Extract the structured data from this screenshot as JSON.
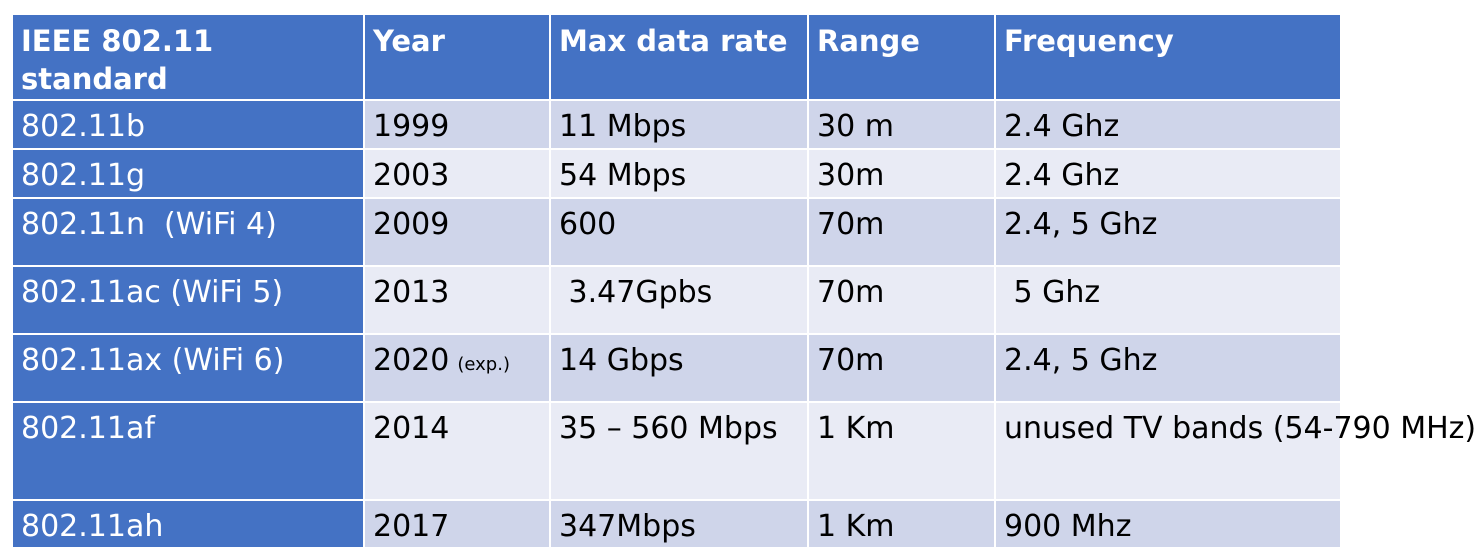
{
  "table": {
    "headers": {
      "standard": "IEEE 802.11 standard",
      "year": "Year",
      "rate": "Max data rate",
      "range": "Range",
      "frequency": "Frequency"
    },
    "rows": [
      {
        "standard": "802.11b",
        "year": "1999",
        "year_note": "",
        "rate": "11 Mbps",
        "range": "30 m",
        "frequency": "2.4 Ghz"
      },
      {
        "standard": "802.11g",
        "year": "2003",
        "year_note": "",
        "rate": "54 Mbps",
        "range": "30m",
        "frequency": "2.4 Ghz"
      },
      {
        "standard": "802.11n  (WiFi 4)",
        "year": "2009",
        "year_note": "",
        "rate": "600",
        "range": "70m",
        "frequency": "2.4, 5 Ghz"
      },
      {
        "standard": "802.11ac (WiFi 5)",
        "year": "2013",
        "year_note": "",
        "rate": " 3.47Gpbs",
        "range": "70m",
        "frequency": " 5 Ghz"
      },
      {
        "standard": "802.11ax (WiFi 6)",
        "year": "2020",
        "year_note": "(exp.)",
        "rate": "14 Gbps",
        "range": "70m",
        "frequency": "2.4, 5 Ghz"
      },
      {
        "standard": "802.11af",
        "year": "2014",
        "year_note": "",
        "rate": "35 – 560 Mbps",
        "range": "1 Km",
        "frequency": "unused TV bands (54-790 MHz)"
      },
      {
        "standard": "802.11ah",
        "year": "2017",
        "year_note": "",
        "rate": "347Mbps",
        "range": "1 Km",
        "frequency": "900 Mhz"
      }
    ]
  },
  "colors": {
    "header_bg": "#4472c4",
    "row_odd_bg": "#cfd5ea",
    "row_even_bg": "#e9ebf5",
    "header_text": "#ffffff"
  }
}
